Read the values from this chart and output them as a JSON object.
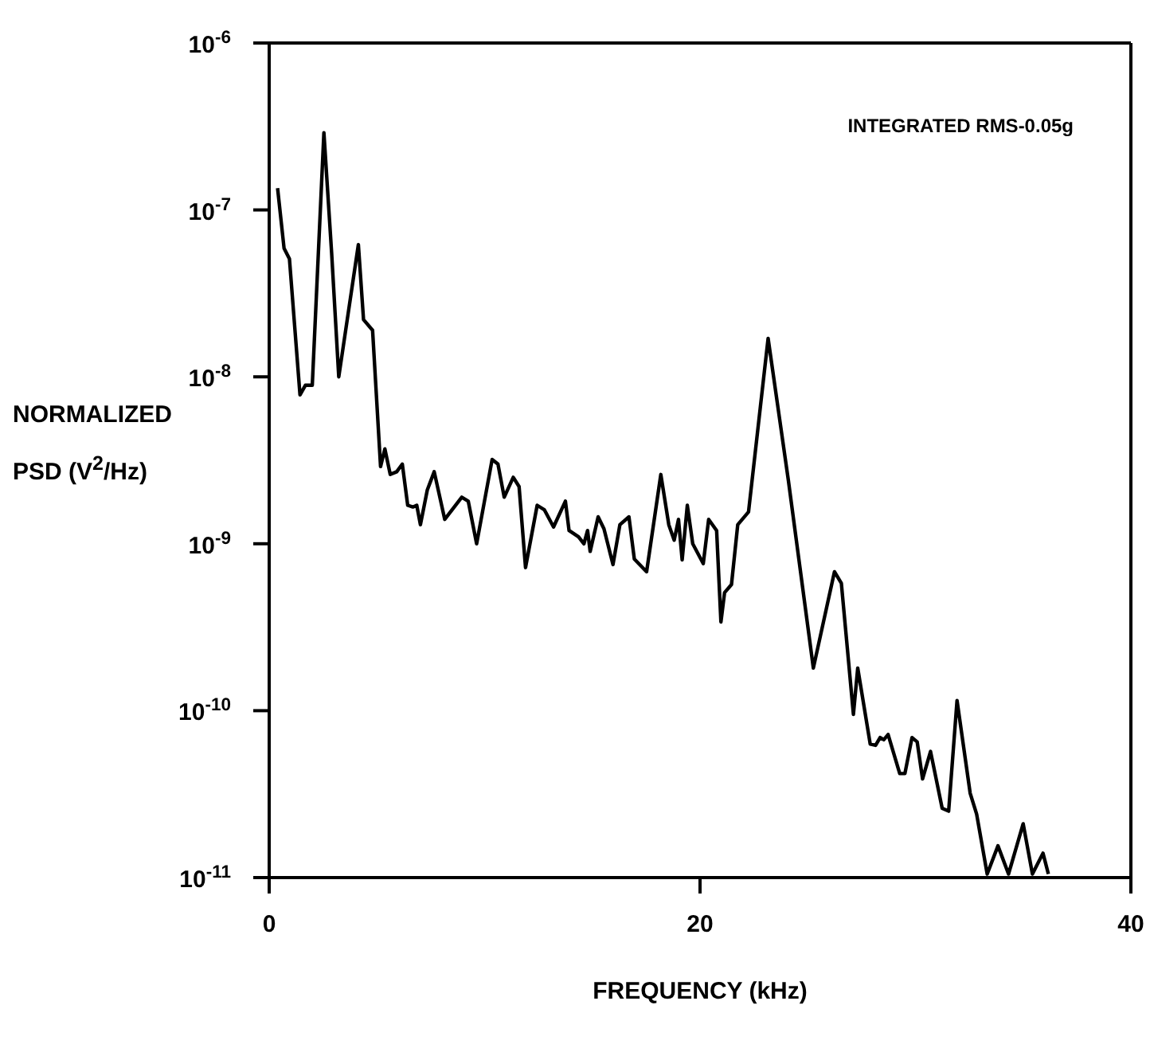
{
  "chart_data": {
    "type": "line",
    "xlabel": "FREQUENCY (kHz)",
    "ylabel": "NORMALIZED\nPSD (V$^{2}$/Hz)",
    "annotations": [
      "INTEGRATED RMS-0.05g"
    ],
    "log": "y",
    "xlim": [
      0,
      40
    ],
    "xticks": [
      0,
      20,
      40
    ],
    "ylim": [
      1e-11,
      1e-06
    ],
    "yticks": [
      {
        "value": 1e-11,
        "label": "10$^{-11}$"
      },
      {
        "value": 1e-10,
        "label": "10$^{-10}$"
      },
      {
        "value": 1e-09,
        "label": "10$^{-9}$"
      },
      {
        "value": 1e-08,
        "label": "10$^{-8}$"
      },
      {
        "value": 1e-07,
        "label": "10$^{-7}$"
      },
      {
        "value": 1e-06,
        "label": "10$^{-6}$"
      }
    ],
    "grid": false,
    "marker": "none",
    "line_style": "solid",
    "series": [
      {
        "color": "#000000",
        "x": [
          0.39,
          0.69,
          0.94,
          1.43,
          1.68,
          2.0,
          2.54,
          2.9,
          3.23,
          4.14,
          4.38,
          4.8,
          5.17,
          5.37,
          5.62,
          5.92,
          6.18,
          6.43,
          6.67,
          6.85,
          7.02,
          7.34,
          7.66,
          8.15,
          8.94,
          9.24,
          9.63,
          10.35,
          10.62,
          10.91,
          11.33,
          11.6,
          11.9,
          12.44,
          12.77,
          13.2,
          13.75,
          13.92,
          14.36,
          14.61,
          14.78,
          14.9,
          15.27,
          15.54,
          15.96,
          16.28,
          16.7,
          16.95,
          17.52,
          18.18,
          18.55,
          18.8,
          19.0,
          19.17,
          19.41,
          19.66,
          20.15,
          20.4,
          20.77,
          20.97,
          21.14,
          21.46,
          21.75,
          22.25,
          23.16,
          24.1,
          25.26,
          26.24,
          26.56,
          27.12,
          27.32,
          27.9,
          28.15,
          28.36,
          28.53,
          28.73,
          29.27,
          29.51,
          29.84,
          30.08,
          30.33,
          30.7,
          31.24,
          31.54,
          31.93,
          32.54,
          32.84,
          33.33,
          33.83,
          34.32,
          35.0,
          35.43,
          35.92,
          36.17
        ],
        "values": [
          1.35e-07,
          5.9e-08,
          5.1e-08,
          7.8e-09,
          8.9e-09,
          8.9e-09,
          2.9e-07,
          5.5e-08,
          1e-08,
          6.2e-08,
          2.2e-08,
          1.9e-08,
          2.9e-09,
          3.7e-09,
          2.6e-09,
          2.7e-09,
          3e-09,
          1.7e-09,
          1.66e-09,
          1.7e-09,
          1.3e-09,
          2.1e-09,
          2.7e-09,
          1.4e-09,
          1.9e-09,
          1.8e-09,
          1e-09,
          3.2e-09,
          3e-09,
          1.9e-09,
          2.5e-09,
          2.2e-09,
          7.2e-10,
          1.7e-09,
          1.6e-09,
          1.26e-09,
          1.8e-09,
          1.2e-09,
          1.1e-09,
          1e-09,
          1.2e-09,
          9e-10,
          1.45e-09,
          1.23e-09,
          7.5e-10,
          1.3e-09,
          1.45e-09,
          8.1e-10,
          6.8e-10,
          2.6e-09,
          1.3e-09,
          1.05e-09,
          1.4e-09,
          8e-10,
          1.7e-09,
          1e-09,
          7.6e-10,
          1.4e-09,
          1.2e-09,
          3.4e-10,
          5.1e-10,
          5.7e-10,
          1.3e-09,
          1.55e-09,
          1.7e-08,
          2.4e-09,
          1.8e-10,
          6.8e-10,
          5.8e-10,
          9.5e-11,
          1.8e-10,
          6.3e-11,
          6.2e-11,
          6.9e-11,
          6.7e-11,
          7.2e-11,
          4.2e-11,
          4.2e-11,
          6.9e-11,
          6.5e-11,
          3.9e-11,
          5.7e-11,
          2.6e-11,
          2.5e-11,
          1.15e-10,
          3.2e-11,
          2.4e-11,
          1.05e-11,
          1.55e-11,
          1.05e-11,
          2.1e-11,
          1.05e-11,
          1.4e-11,
          1.05e-11
        ]
      }
    ]
  }
}
